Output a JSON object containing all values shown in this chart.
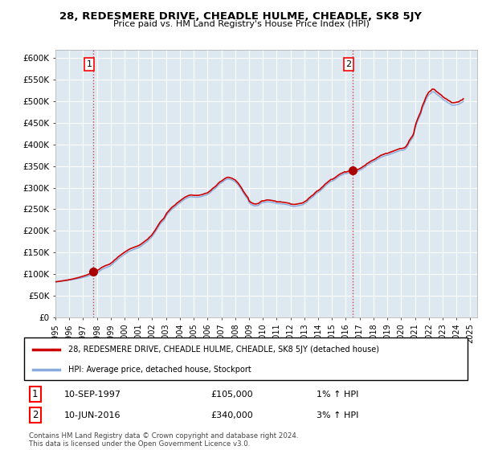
{
  "title": "28, REDESMERE DRIVE, CHEADLE HULME, CHEADLE, SK8 5JY",
  "subtitle": "Price paid vs. HM Land Registry's House Price Index (HPI)",
  "ylim": [
    0,
    620000
  ],
  "xlim_start": 1995.0,
  "xlim_end": 2025.5,
  "sale1_x": 1997.75,
  "sale1_y": 105000,
  "sale2_x": 2016.5,
  "sale2_y": 340000,
  "legend_line1": "28, REDESMERE DRIVE, CHEADLE HULME, CHEADLE, SK8 5JY (detached house)",
  "legend_line2": "HPI: Average price, detached house, Stockport",
  "annotation1_date": "10-SEP-1997",
  "annotation1_price": "£105,000",
  "annotation1_hpi": "1% ↑ HPI",
  "annotation2_date": "10-JUN-2016",
  "annotation2_price": "£340,000",
  "annotation2_hpi": "3% ↑ HPI",
  "footer": "Contains HM Land Registry data © Crown copyright and database right 2024.\nThis data is licensed under the Open Government Licence v3.0.",
  "plot_bg_color": "#dde8f0",
  "fig_bg_color": "#ffffff",
  "grid_color": "#ffffff",
  "hpi_line_color": "#88aadd",
  "price_line_color": "#cc0000",
  "sale_dot_color": "#aa0000",
  "dashed_line_color": "#cc4444",
  "hpi_data_x": [
    1995.0,
    1995.08,
    1995.17,
    1995.25,
    1995.33,
    1995.42,
    1995.5,
    1995.58,
    1995.67,
    1995.75,
    1995.83,
    1995.92,
    1996.0,
    1996.08,
    1996.17,
    1996.25,
    1996.33,
    1996.42,
    1996.5,
    1996.58,
    1996.67,
    1996.75,
    1996.83,
    1996.92,
    1997.0,
    1997.08,
    1997.17,
    1997.25,
    1997.33,
    1997.42,
    1997.5,
    1997.58,
    1997.67,
    1997.75,
    1997.83,
    1997.92,
    1998.0,
    1998.08,
    1998.17,
    1998.25,
    1998.33,
    1998.42,
    1998.5,
    1998.58,
    1998.67,
    1998.75,
    1998.83,
    1998.92,
    1999.0,
    1999.08,
    1999.17,
    1999.25,
    1999.33,
    1999.42,
    1999.5,
    1999.58,
    1999.67,
    1999.75,
    1999.83,
    1999.92,
    2000.0,
    2000.08,
    2000.17,
    2000.25,
    2000.33,
    2000.42,
    2000.5,
    2000.58,
    2000.67,
    2000.75,
    2000.83,
    2000.92,
    2001.0,
    2001.08,
    2001.17,
    2001.25,
    2001.33,
    2001.42,
    2001.5,
    2001.58,
    2001.67,
    2001.75,
    2001.83,
    2001.92,
    2002.0,
    2002.08,
    2002.17,
    2002.25,
    2002.33,
    2002.42,
    2002.5,
    2002.58,
    2002.67,
    2002.75,
    2002.83,
    2002.92,
    2003.0,
    2003.08,
    2003.17,
    2003.25,
    2003.33,
    2003.42,
    2003.5,
    2003.58,
    2003.67,
    2003.75,
    2003.83,
    2003.92,
    2004.0,
    2004.08,
    2004.17,
    2004.25,
    2004.33,
    2004.42,
    2004.5,
    2004.58,
    2004.67,
    2004.75,
    2004.83,
    2004.92,
    2005.0,
    2005.08,
    2005.17,
    2005.25,
    2005.33,
    2005.42,
    2005.5,
    2005.58,
    2005.67,
    2005.75,
    2005.83,
    2005.92,
    2006.0,
    2006.08,
    2006.17,
    2006.25,
    2006.33,
    2006.42,
    2006.5,
    2006.58,
    2006.67,
    2006.75,
    2006.83,
    2006.92,
    2007.0,
    2007.08,
    2007.17,
    2007.25,
    2007.33,
    2007.42,
    2007.5,
    2007.58,
    2007.67,
    2007.75,
    2007.83,
    2007.92,
    2008.0,
    2008.08,
    2008.17,
    2008.25,
    2008.33,
    2008.42,
    2008.5,
    2008.58,
    2008.67,
    2008.75,
    2008.83,
    2008.92,
    2009.0,
    2009.08,
    2009.17,
    2009.25,
    2009.33,
    2009.42,
    2009.5,
    2009.58,
    2009.67,
    2009.75,
    2009.83,
    2009.92,
    2010.0,
    2010.08,
    2010.17,
    2010.25,
    2010.33,
    2010.42,
    2010.5,
    2010.58,
    2010.67,
    2010.75,
    2010.83,
    2010.92,
    2011.0,
    2011.08,
    2011.17,
    2011.25,
    2011.33,
    2011.42,
    2011.5,
    2011.58,
    2011.67,
    2011.75,
    2011.83,
    2011.92,
    2012.0,
    2012.08,
    2012.17,
    2012.25,
    2012.33,
    2012.42,
    2012.5,
    2012.58,
    2012.67,
    2012.75,
    2012.83,
    2012.92,
    2013.0,
    2013.08,
    2013.17,
    2013.25,
    2013.33,
    2013.42,
    2013.5,
    2013.58,
    2013.67,
    2013.75,
    2013.83,
    2013.92,
    2014.0,
    2014.08,
    2014.17,
    2014.25,
    2014.33,
    2014.42,
    2014.5,
    2014.58,
    2014.67,
    2014.75,
    2014.83,
    2014.92,
    2015.0,
    2015.08,
    2015.17,
    2015.25,
    2015.33,
    2015.42,
    2015.5,
    2015.58,
    2015.67,
    2015.75,
    2015.83,
    2015.92,
    2016.0,
    2016.08,
    2016.17,
    2016.25,
    2016.33,
    2016.42,
    2016.5,
    2016.58,
    2016.67,
    2016.75,
    2016.83,
    2016.92,
    2017.0,
    2017.08,
    2017.17,
    2017.25,
    2017.33,
    2017.42,
    2017.5,
    2017.58,
    2017.67,
    2017.75,
    2017.83,
    2017.92,
    2018.0,
    2018.08,
    2018.17,
    2018.25,
    2018.33,
    2018.42,
    2018.5,
    2018.58,
    2018.67,
    2018.75,
    2018.83,
    2018.92,
    2019.0,
    2019.08,
    2019.17,
    2019.25,
    2019.33,
    2019.42,
    2019.5,
    2019.58,
    2019.67,
    2019.75,
    2019.83,
    2019.92,
    2020.0,
    2020.08,
    2020.17,
    2020.25,
    2020.33,
    2020.42,
    2020.5,
    2020.58,
    2020.67,
    2020.75,
    2020.83,
    2020.92,
    2021.0,
    2021.08,
    2021.17,
    2021.25,
    2021.33,
    2021.42,
    2021.5,
    2021.58,
    2021.67,
    2021.75,
    2021.83,
    2021.92,
    2022.0,
    2022.08,
    2022.17,
    2022.25,
    2022.33,
    2022.42,
    2022.5,
    2022.58,
    2022.67,
    2022.75,
    2022.83,
    2022.92,
    2023.0,
    2023.08,
    2023.17,
    2023.25,
    2023.33,
    2023.42,
    2023.5,
    2023.58,
    2023.67,
    2023.75,
    2023.83,
    2023.92,
    2024.0,
    2024.08,
    2024.17,
    2024.25,
    2024.33,
    2024.42,
    2024.5
  ],
  "hpi_data_y": [
    82000,
    82200,
    82500,
    82800,
    83100,
    83400,
    83700,
    84000,
    84300,
    84700,
    85100,
    85500,
    85900,
    86300,
    86700,
    87100,
    87600,
    88100,
    88600,
    89100,
    89700,
    90300,
    90900,
    91500,
    92100,
    92800,
    93500,
    94200,
    95000,
    96000,
    97000,
    98000,
    99000,
    100000,
    101000,
    102000,
    103000,
    104500,
    106000,
    108000,
    110000,
    111500,
    113000,
    114000,
    115000,
    116000,
    117000,
    118000,
    120000,
    122000,
    124000,
    127000,
    129000,
    131000,
    134000,
    136000,
    138000,
    140000,
    142000,
    144000,
    146000,
    147500,
    149000,
    151000,
    152500,
    154000,
    155000,
    156000,
    157000,
    158000,
    159000,
    160000,
    161000,
    162500,
    164000,
    166000,
    168000,
    170000,
    172000,
    174000,
    176000,
    179000,
    181500,
    184000,
    187000,
    191000,
    195000,
    199000,
    203000,
    208000,
    212000,
    216000,
    219000,
    222000,
    224000,
    229000,
    234000,
    238000,
    241000,
    244000,
    247000,
    250000,
    252000,
    254000,
    256000,
    259000,
    261000,
    263000,
    265000,
    267000,
    269000,
    271000,
    273000,
    274500,
    276000,
    277000,
    278000,
    278500,
    279000,
    278500,
    278000,
    278000,
    278000,
    278000,
    278000,
    278500,
    279000,
    279500,
    280500,
    281500,
    282500,
    283000,
    284000,
    286000,
    288000,
    290000,
    293000,
    295000,
    297000,
    299000,
    302000,
    305000,
    307500,
    310000,
    311000,
    313000,
    315000,
    317000,
    318500,
    319500,
    320000,
    319500,
    318500,
    318000,
    316500,
    315000,
    314000,
    311000,
    308000,
    305000,
    301000,
    297000,
    293000,
    288000,
    284000,
    280000,
    276500,
    273000,
    266000,
    263000,
    261000,
    260000,
    258500,
    258000,
    258000,
    258500,
    259000,
    261000,
    263000,
    265000,
    265000,
    265500,
    266000,
    267000,
    267500,
    267000,
    267000,
    266500,
    266000,
    265500,
    265000,
    264500,
    263000,
    263000,
    263000,
    263000,
    262500,
    262000,
    262000,
    261500,
    261000,
    260500,
    260000,
    259500,
    258000,
    257500,
    257000,
    257000,
    257000,
    257500,
    258000,
    258500,
    259000,
    259500,
    260000,
    261000,
    263000,
    264500,
    266000,
    269000,
    271500,
    274000,
    276000,
    278000,
    280000,
    283000,
    285500,
    288000,
    289000,
    291000,
    293000,
    296000,
    298000,
    301000,
    304000,
    306000,
    308000,
    310000,
    312500,
    315000,
    315000,
    316500,
    318000,
    320000,
    322000,
    324000,
    326000,
    327500,
    329000,
    330000,
    331500,
    333000,
    332000,
    333000,
    334000,
    335000,
    335500,
    336000,
    336000,
    336500,
    337000,
    337500,
    338000,
    338500,
    340000,
    341500,
    343000,
    345000,
    346500,
    348000,
    351000,
    352500,
    354000,
    356000,
    357500,
    359000,
    360000,
    361500,
    363000,
    365000,
    366500,
    368000,
    370000,
    371000,
    372000,
    373000,
    374000,
    375000,
    375000,
    376000,
    377000,
    378000,
    379000,
    380000,
    381000,
    382000,
    383000,
    384000,
    385000,
    386000,
    386000,
    386500,
    387000,
    388000,
    390000,
    394000,
    398000,
    404000,
    408000,
    412000,
    415000,
    422000,
    435000,
    444000,
    452000,
    458000,
    464000,
    470000,
    480000,
    487000,
    493000,
    500000,
    506000,
    511000,
    515000,
    517000,
    519000,
    522000,
    522000,
    521000,
    518000,
    516000,
    514000,
    512000,
    510000,
    508000,
    505000,
    503000,
    501000,
    500000,
    498000,
    496000,
    495000,
    493000,
    491000,
    491000,
    491000,
    491500,
    492000,
    492500,
    493000,
    495000,
    496500,
    497500,
    500000
  ],
  "xticks": [
    1995,
    1996,
    1997,
    1998,
    1999,
    2000,
    2001,
    2002,
    2003,
    2004,
    2005,
    2006,
    2007,
    2008,
    2009,
    2010,
    2011,
    2012,
    2013,
    2014,
    2015,
    2016,
    2017,
    2018,
    2019,
    2020,
    2021,
    2022,
    2023,
    2024,
    2025
  ]
}
